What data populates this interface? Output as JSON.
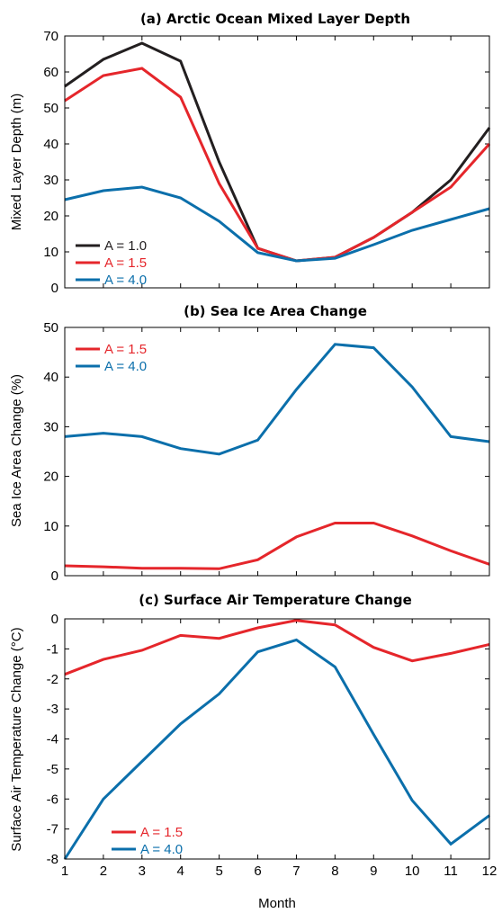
{
  "colors": {
    "A_1_0": "#231f20",
    "A_1_5": "#e5262b",
    "A_4_0": "#0b6fab"
  },
  "x_axis": {
    "label": "Month",
    "ticks": [
      1,
      2,
      3,
      4,
      5,
      6,
      7,
      8,
      9,
      10,
      11,
      12
    ]
  },
  "chart_data": [
    {
      "type": "line",
      "title": "(a) Arctic Ocean Mixed Layer Depth",
      "ylabel": "Mixed Layer Depth (m)",
      "xlabel": "",
      "ylim": [
        0,
        70
      ],
      "yticks": [
        0,
        10,
        20,
        30,
        40,
        50,
        60,
        70
      ],
      "x": [
        1,
        2,
        3,
        4,
        5,
        6,
        7,
        8,
        9,
        10,
        11,
        12
      ],
      "legend_position": "bottom-left",
      "series": [
        {
          "name": "A = 1.0",
          "color": "#231f20",
          "values": [
            56,
            63.5,
            68,
            63,
            35,
            11,
            7.5,
            8.5,
            14,
            21,
            30,
            44.5
          ]
        },
        {
          "name": "A = 1.5",
          "color": "#e5262b",
          "values": [
            52,
            59,
            61,
            53,
            29,
            11,
            7.5,
            8.5,
            14,
            21,
            28,
            40
          ]
        },
        {
          "name": "A = 4.0",
          "color": "#0b6fab",
          "values": [
            24.5,
            27,
            28,
            25,
            18.5,
            9.8,
            7.5,
            8.2,
            12,
            16,
            19,
            22
          ]
        }
      ]
    },
    {
      "type": "line",
      "title": "(b) Sea Ice Area Change",
      "ylabel": "Sea Ice Area Change (%)",
      "xlabel": "",
      "ylim": [
        0,
        50
      ],
      "yticks": [
        0,
        10,
        20,
        30,
        40,
        50
      ],
      "x": [
        1,
        2,
        3,
        4,
        5,
        6,
        7,
        8,
        9,
        10,
        11,
        12
      ],
      "legend_position": "top-left",
      "series": [
        {
          "name": "A = 1.5",
          "color": "#e5262b",
          "values": [
            2,
            1.8,
            1.5,
            1.5,
            1.4,
            3.2,
            7.8,
            10.6,
            10.6,
            8,
            5,
            2.3
          ]
        },
        {
          "name": "A = 4.0",
          "color": "#0b6fab",
          "values": [
            28,
            28.7,
            28,
            25.6,
            24.5,
            27.3,
            37.5,
            46.6,
            45.9,
            38,
            28,
            27
          ]
        }
      ]
    },
    {
      "type": "line",
      "title": "(c) Surface Air Temperature Change",
      "ylabel": "Surface Air Temperature Change (°C)",
      "xlabel": "Month",
      "ylim": [
        -8,
        0
      ],
      "yticks": [
        -8,
        -7,
        -6,
        -5,
        -4,
        -3,
        -2,
        -1,
        0
      ],
      "x": [
        1,
        2,
        3,
        4,
        5,
        6,
        7,
        8,
        9,
        10,
        11,
        12
      ],
      "legend_position": "bottom-left",
      "series": [
        {
          "name": "A = 1.5",
          "color": "#e5262b",
          "values": [
            -1.85,
            -1.35,
            -1.05,
            -0.55,
            -0.65,
            -0.3,
            -0.05,
            -0.2,
            -0.95,
            -1.4,
            -1.15,
            -0.85
          ]
        },
        {
          "name": "A = 4.0",
          "color": "#0b6fab",
          "values": [
            -8,
            -6,
            -4.75,
            -3.5,
            -2.5,
            -1.1,
            -0.7,
            -1.6,
            -3.85,
            -6.05,
            -7.5,
            -6.55
          ]
        }
      ]
    }
  ]
}
